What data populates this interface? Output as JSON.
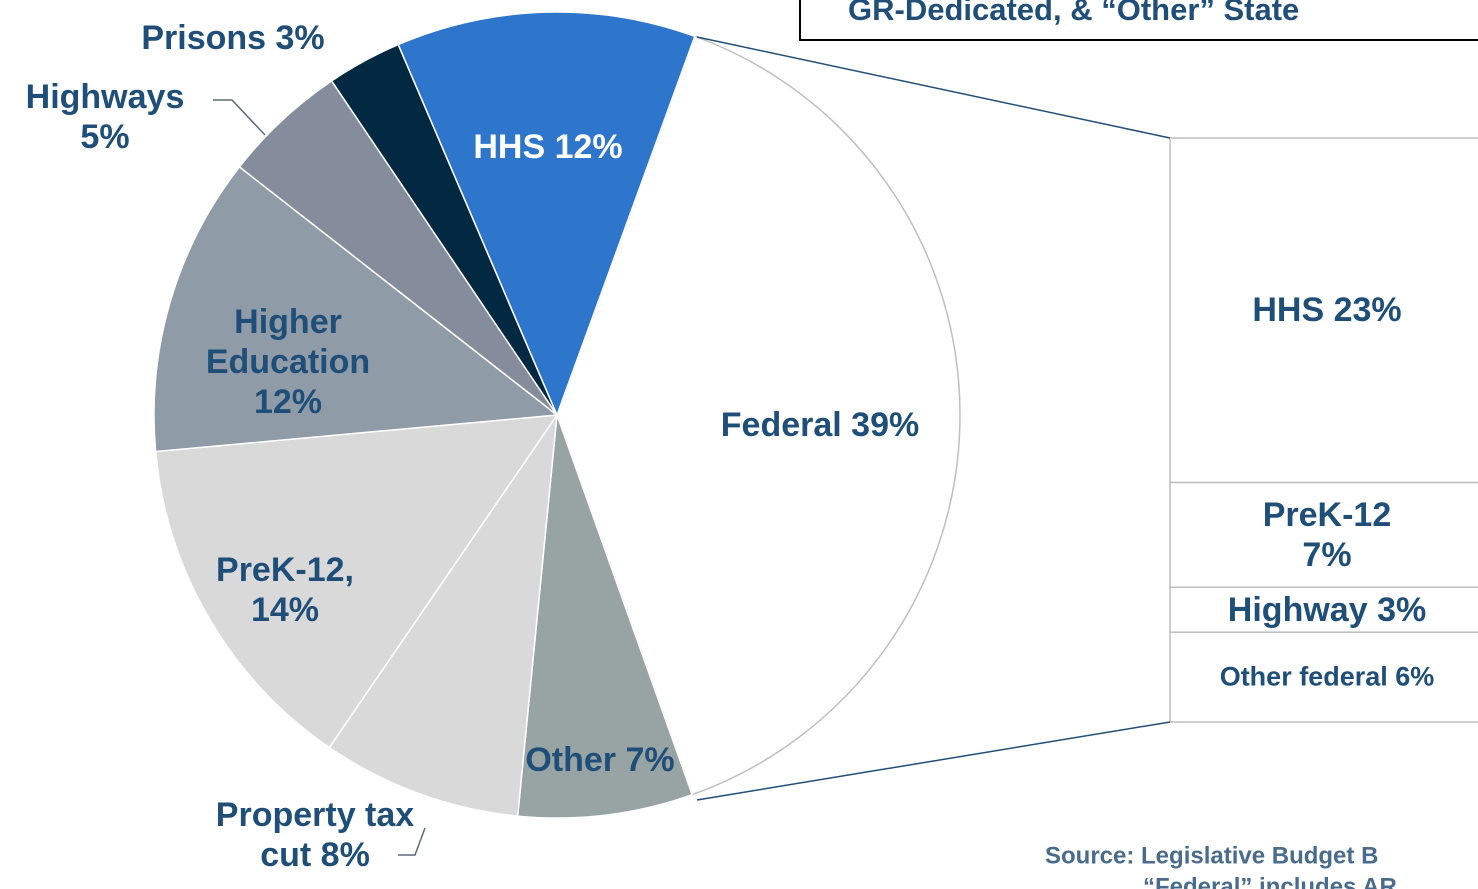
{
  "chart_data": [
    {
      "type": "pie",
      "title": "GR-Dedicated, & “Other” State",
      "categories": [
        "Federal",
        "Other",
        "Property tax cut",
        "PreK-12,",
        "Higher Education",
        "Highways",
        "Prisons",
        "HHS"
      ],
      "values": [
        39,
        7,
        8,
        14,
        12,
        5,
        3,
        12
      ],
      "value_labels": [
        "39%",
        "7%",
        "8%",
        "14%",
        "12%",
        "5%",
        "3%",
        "12%"
      ],
      "colors": [
        "#ffffff",
        "#98a3a3",
        "#d9d9d9",
        "#d9d9d9",
        "#8f9ba6",
        "#858d9c",
        "#022842",
        "#2e75cc"
      ],
      "annotations": [
        "Source: Legislative Budget B",
        "“Federal” includes AR"
      ]
    },
    {
      "type": "bar",
      "categories": [
        "HHS",
        "PreK-12",
        "Highway",
        "Other federal"
      ],
      "values": [
        23,
        7,
        3,
        6
      ],
      "value_labels": [
        "23%",
        "7%",
        "3%",
        "6%"
      ],
      "color": "#ffffff"
    }
  ]
}
